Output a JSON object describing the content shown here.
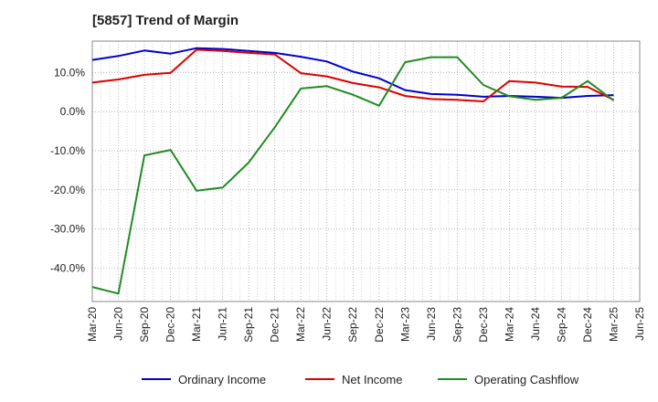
{
  "chart_data": {
    "type": "line",
    "title": "[5857]  Trend of Margin",
    "xlabel": "",
    "ylabel": "",
    "ylim": [
      -48.5,
      18
    ],
    "yticks": [
      10,
      0,
      -10,
      -20,
      -30,
      -40
    ],
    "ytick_labels": [
      "10.0%",
      "0.0%",
      "-10.0%",
      "-20.0%",
      "-30.0%",
      "-40.0%"
    ],
    "categories": [
      "Mar-20",
      "Jun-20",
      "Sep-20",
      "Dec-20",
      "Mar-21",
      "Jun-21",
      "Sep-21",
      "Dec-21",
      "Mar-22",
      "Jun-22",
      "Sep-22",
      "Dec-22",
      "Mar-23",
      "Jun-23",
      "Sep-23",
      "Dec-23",
      "Mar-24",
      "Jun-24",
      "Sep-24",
      "Dec-24",
      "Mar-25",
      "Jun-25"
    ],
    "grid": true,
    "legend_position": "bottom",
    "series": [
      {
        "name": "Ordinary Income",
        "color": "#0000cc",
        "values": [
          13.2,
          14.2,
          15.6,
          14.8,
          16.2,
          16.0,
          15.5,
          15.0,
          14.0,
          12.8,
          10.2,
          8.5,
          5.5,
          4.5,
          4.3,
          3.8,
          4.0,
          3.8,
          3.5,
          4.0,
          4.2,
          null
        ]
      },
      {
        "name": "Net Income",
        "color": "#dd0000",
        "values": [
          7.4,
          8.2,
          9.4,
          9.9,
          15.8,
          15.5,
          15.0,
          14.6,
          9.8,
          9.0,
          7.3,
          6.2,
          4.0,
          3.2,
          3.0,
          2.6,
          7.8,
          7.4,
          6.4,
          6.3,
          3.0,
          null
        ]
      },
      {
        "name": "Operating Cashflow",
        "color": "#228b22",
        "values": [
          -44.8,
          -46.5,
          -11.2,
          -9.8,
          -20.2,
          -19.4,
          -13.0,
          -4.0,
          5.9,
          6.5,
          4.3,
          1.5,
          12.6,
          13.9,
          13.9,
          6.8,
          3.9,
          3.0,
          3.5,
          7.8,
          2.8,
          null
        ]
      }
    ]
  }
}
